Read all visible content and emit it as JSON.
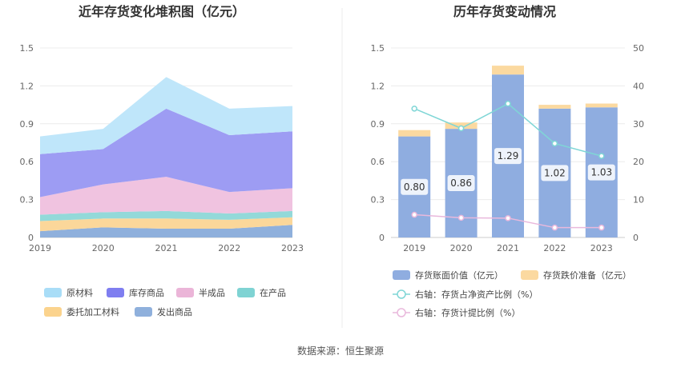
{
  "source_text": "数据来源：恒生聚源",
  "chart_data": [
    {
      "type": "area",
      "title": "近年存货变化堆积图（亿元）",
      "categories": [
        "2019",
        "2020",
        "2021",
        "2022",
        "2023"
      ],
      "ylim": [
        0,
        1.5
      ],
      "yticks": [
        "0",
        "0.3",
        "0.6",
        "0.9",
        "1.2",
        "1.5"
      ],
      "stacked": true,
      "series": [
        {
          "name": "发出商品",
          "color": "#8fb0dc",
          "values": [
            0.05,
            0.08,
            0.07,
            0.07,
            0.1
          ]
        },
        {
          "name": "委托加工材料",
          "color": "#fbd79a",
          "values": [
            0.08,
            0.07,
            0.08,
            0.07,
            0.06
          ]
        },
        {
          "name": "在产品",
          "color": "#93d9d9",
          "values": [
            0.05,
            0.05,
            0.06,
            0.05,
            0.05
          ]
        },
        {
          "name": "半成品",
          "color": "#f0c3e0",
          "values": [
            0.14,
            0.22,
            0.27,
            0.17,
            0.18
          ]
        },
        {
          "name": "库存商品",
          "color": "#9d9cf3",
          "values": [
            0.34,
            0.28,
            0.54,
            0.45,
            0.45
          ]
        },
        {
          "name": "原材料",
          "color": "#bfe6fa",
          "values": [
            0.14,
            0.16,
            0.25,
            0.21,
            0.2
          ]
        }
      ],
      "legend": [
        {
          "name": "原材料",
          "color": "#a9ddf7"
        },
        {
          "name": "库存商品",
          "color": "#7f7ef0"
        },
        {
          "name": "半成品",
          "color": "#ebb5d8"
        },
        {
          "name": "在产品",
          "color": "#7fd3d3"
        },
        {
          "name": "委托加工材料",
          "color": "#fbd38d"
        },
        {
          "name": "发出商品",
          "color": "#8fb0dc"
        }
      ]
    },
    {
      "type": "bar+line",
      "title": "历年存货变动情况",
      "categories": [
        "2019",
        "2020",
        "2021",
        "2022",
        "2023"
      ],
      "ylim_left": [
        0,
        1.5
      ],
      "yticks_left": [
        "0",
        "0.3",
        "0.6",
        "0.9",
        "1.2",
        "1.5"
      ],
      "ylim_right": [
        0,
        50
      ],
      "yticks_right": [
        "0",
        "10",
        "20",
        "30",
        "40",
        "50"
      ],
      "bars": [
        {
          "name": "存货账面价值（亿元）",
          "color": "#8fade0",
          "values": [
            0.8,
            0.86,
            1.29,
            1.02,
            1.03
          ],
          "labels": [
            "0.80",
            "0.86",
            "1.29",
            "1.02",
            "1.03"
          ]
        },
        {
          "name": "存货跌价准备（亿元）",
          "color": "#fbd9a0",
          "values": [
            0.05,
            0.05,
            0.07,
            0.03,
            0.03
          ]
        }
      ],
      "lines": [
        {
          "name": "右轴：存货占净资产比例（%）",
          "color": "#7fd6d6",
          "values": [
            34.0,
            28.8,
            35.3,
            24.8,
            21.5
          ]
        },
        {
          "name": "右轴：存货计提比例（%）",
          "color": "#e9b8dc",
          "values": [
            6.0,
            5.2,
            5.1,
            2.6,
            2.6
          ]
        }
      ]
    }
  ]
}
